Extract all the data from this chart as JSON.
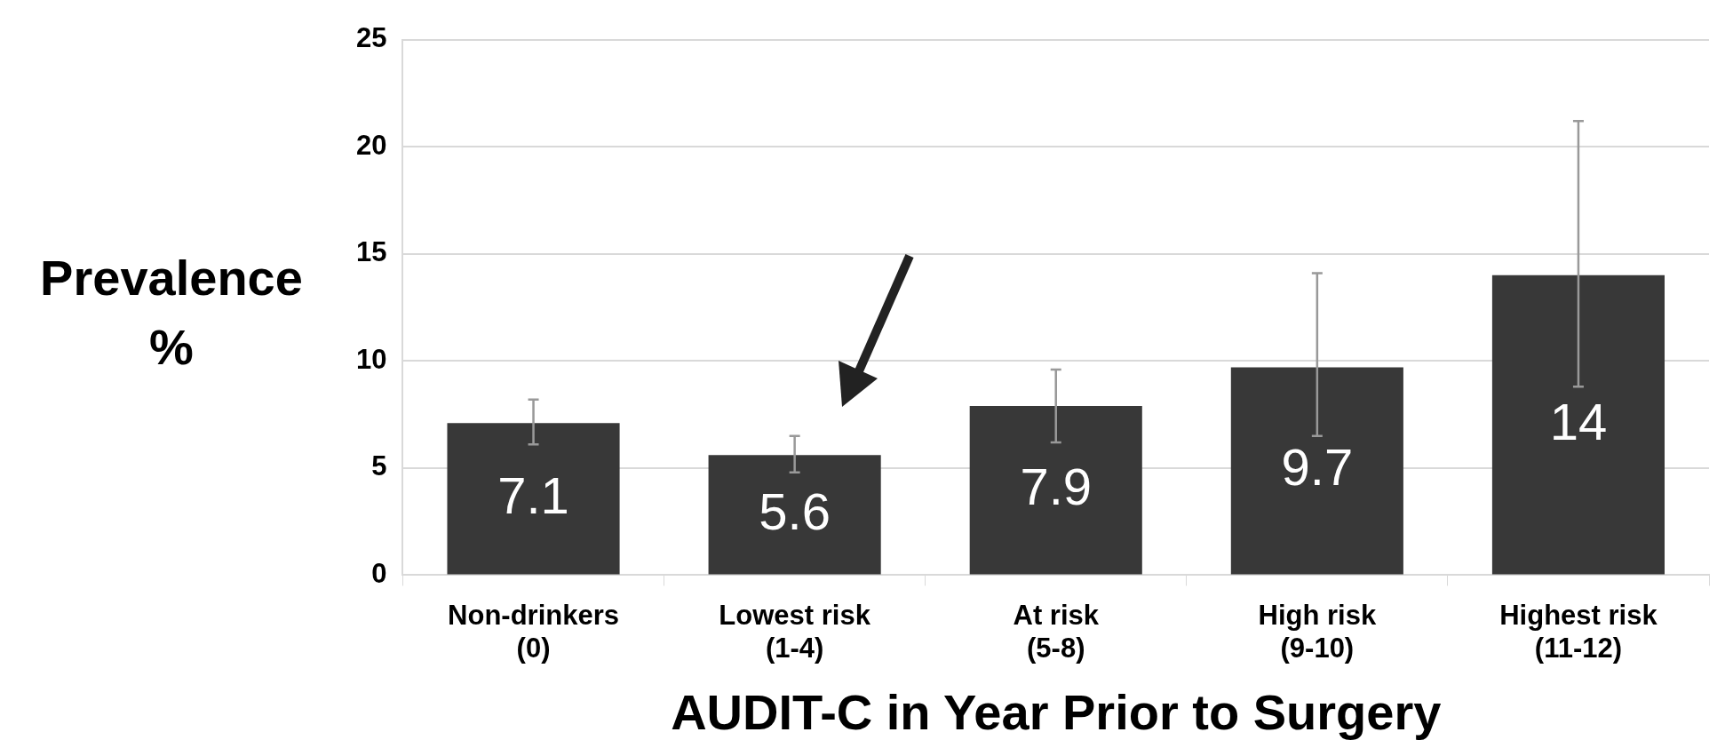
{
  "chart_data": {
    "type": "bar",
    "xlabel": "AUDIT-C in Year Prior to Surgery",
    "ylabel": "Prevalence %",
    "categories": [
      "Non-drinkers (0)",
      "Lowest risk (1-4)",
      "At risk (5-8)",
      "High risk (9-10)",
      "Highest risk (11-12)"
    ],
    "values": [
      7.1,
      5.6,
      7.9,
      9.7,
      14
    ],
    "errors": [
      [
        6.1,
        8.2
      ],
      [
        4.8,
        6.5
      ],
      [
        6.2,
        9.6
      ],
      [
        6.5,
        14.1
      ],
      [
        8.8,
        21.2
      ]
    ],
    "color": "#383838",
    "ylim": [
      0,
      25
    ],
    "yticks": [
      0,
      5,
      10,
      15,
      20,
      25
    ],
    "grid": true,
    "data_labels": true
  }
}
